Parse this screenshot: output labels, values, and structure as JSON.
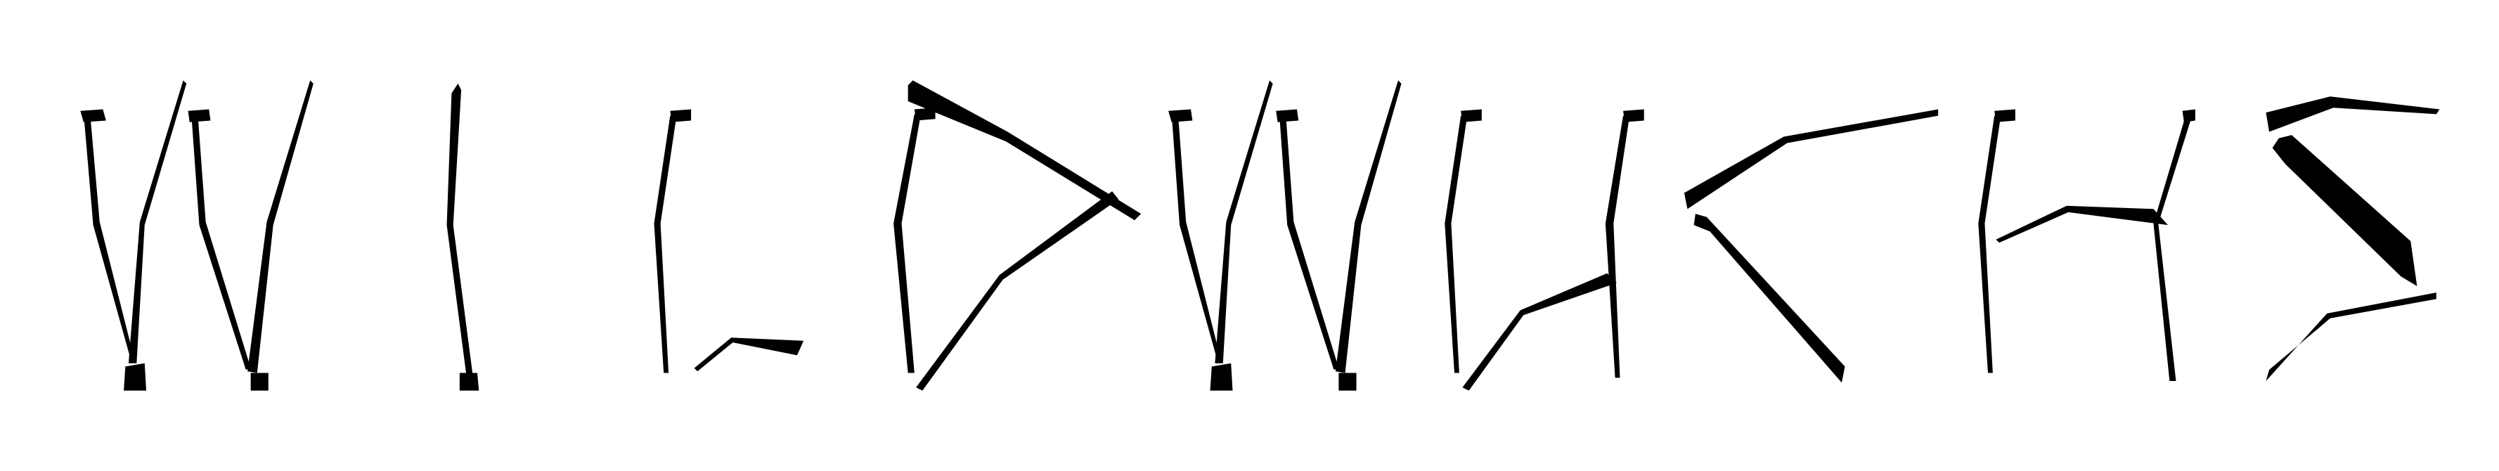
{
  "wordmark": {
    "text": "WILDWUCHS",
    "letters": [
      "W",
      "I",
      "L",
      "D",
      "W",
      "U",
      "C",
      "H",
      "S"
    ]
  },
  "colors": {
    "ink": "#000000",
    "background": "#ffffff"
  }
}
